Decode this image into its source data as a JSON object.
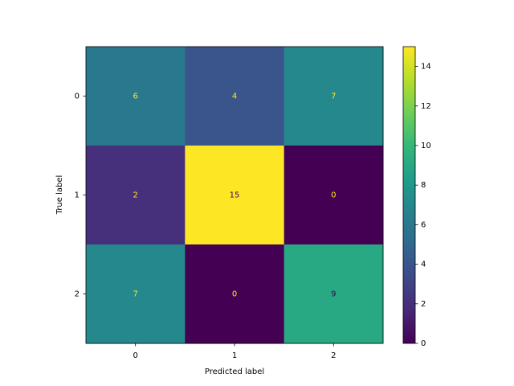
{
  "chart_data": {
    "type": "heatmap",
    "xlabel": "Predicted label",
    "ylabel": "True label",
    "x_categories": [
      "0",
      "1",
      "2"
    ],
    "y_categories": [
      "0",
      "1",
      "2"
    ],
    "values": [
      [
        6,
        4,
        7
      ],
      [
        2,
        15,
        0
      ],
      [
        7,
        0,
        9
      ]
    ],
    "colormap": [
      "#440154",
      "#482878",
      "#3e4989",
      "#31688e",
      "#26828e",
      "#1f9e89",
      "#35b779",
      "#6ece58",
      "#b5de2b",
      "#fde725"
    ],
    "clim": [
      0,
      15
    ],
    "colorbar_ticks": [
      0,
      2,
      4,
      6,
      8,
      10,
      12,
      14
    ]
  }
}
